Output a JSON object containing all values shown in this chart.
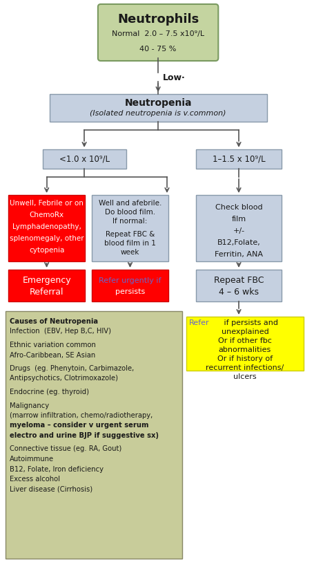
{
  "title": "Neutrophils",
  "title_sub1": "Normal  2.0 – 7.5 x10⁹/L",
  "title_sub2": "40 - 75 %",
  "low_label": "Low·",
  "bg_color": "#ffffff",
  "box_green": "#c4d4a0",
  "box_green_edge": "#7a9a60",
  "box_blue": "#c5d0e0",
  "box_blue_edge": "#8899aa",
  "box_red": "#ff0000",
  "box_red_edge": "#cc0000",
  "box_yellow": "#ffff00",
  "box_yellow_edge": "#cccc00",
  "box_olive": "#c8cc9a",
  "box_olive_edge": "#888866",
  "text_dark": "#1a1a1a",
  "text_white": "#ffffff",
  "text_link": "#6666cc",
  "arrow_color": "#555555"
}
